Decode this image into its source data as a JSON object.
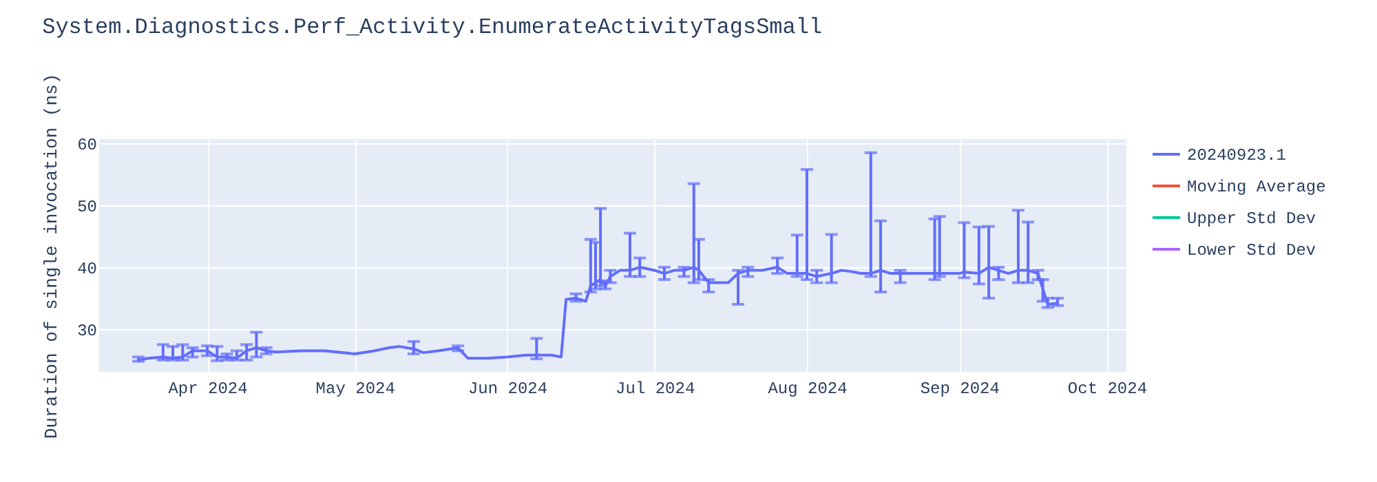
{
  "chart_data": {
    "type": "line",
    "title": "System.Diagnostics.Perf_Activity.EnumerateActivityTagsSmall",
    "ylabel": "Duration of single invocation (ns)",
    "x": [
      "2024-03-18",
      "2024-03-20",
      "2024-03-23",
      "2024-03-25",
      "2024-03-27",
      "2024-03-29",
      "2024-04-01",
      "2024-04-03",
      "2024-04-05",
      "2024-04-07",
      "2024-04-09",
      "2024-04-11",
      "2024-04-13",
      "2024-04-15",
      "2024-04-20",
      "2024-04-25",
      "2024-05-01",
      "2024-05-05",
      "2024-05-08",
      "2024-05-10",
      "2024-05-13",
      "2024-05-15",
      "2024-05-18",
      "2024-05-22",
      "2024-05-24",
      "2024-05-28",
      "2024-06-01",
      "2024-06-05",
      "2024-06-07",
      "2024-06-10",
      "2024-06-12",
      "2024-06-13",
      "2024-06-15",
      "2024-06-17",
      "2024-06-18",
      "2024-06-19",
      "2024-06-20",
      "2024-06-21",
      "2024-06-22",
      "2024-06-24",
      "2024-06-26",
      "2024-06-28",
      "2024-07-01",
      "2024-07-03",
      "2024-07-05",
      "2024-07-07",
      "2024-07-09",
      "2024-07-10",
      "2024-07-12",
      "2024-07-14",
      "2024-07-16",
      "2024-07-18",
      "2024-07-20",
      "2024-07-23",
      "2024-07-26",
      "2024-07-28",
      "2024-07-30",
      "2024-08-01",
      "2024-08-03",
      "2024-08-06",
      "2024-08-08",
      "2024-08-10",
      "2024-08-12",
      "2024-08-14",
      "2024-08-16",
      "2024-08-18",
      "2024-08-20",
      "2024-08-24",
      "2024-08-27",
      "2024-08-28",
      "2024-09-01",
      "2024-09-02",
      "2024-09-05",
      "2024-09-07",
      "2024-09-09",
      "2024-09-11",
      "2024-09-13",
      "2024-09-15",
      "2024-09-17",
      "2024-09-18",
      "2024-09-19",
      "2024-09-21"
    ],
    "series": [
      {
        "name": "20240923.1",
        "color": "#636efa",
        "values": [
          25,
          25.3,
          25.5,
          25.3,
          25.5,
          26.5,
          26.5,
          25.5,
          25.5,
          25.3,
          26.5,
          27,
          26.5,
          26.3,
          26.5,
          26.5,
          26,
          26.5,
          27,
          27.2,
          26.8,
          26.2,
          26.5,
          27,
          25.3,
          25.3,
          25.5,
          25.8,
          25.8,
          25.8,
          25.5,
          34.8,
          35,
          34.5,
          37,
          37.5,
          38,
          37,
          38.5,
          39.5,
          39.5,
          40,
          39.5,
          39,
          39.5,
          39.5,
          40,
          39.5,
          37.5,
          37.5,
          37.5,
          39,
          39.5,
          39.5,
          40,
          39,
          39,
          39,
          38.5,
          39,
          39.5,
          39.3,
          39,
          39,
          39.5,
          39,
          39,
          39,
          39,
          39,
          39,
          39.2,
          39,
          40,
          39.5,
          39,
          39.5,
          39.5,
          39,
          36.5,
          34,
          34.2
        ],
        "errors": [
          [
            24.8,
            25.5
          ],
          null,
          [
            25,
            27.5
          ],
          [
            25,
            27.2
          ],
          [
            25,
            27.5
          ],
          [
            25.5,
            27
          ],
          [
            25.7,
            27.3
          ],
          [
            24.9,
            27.2
          ],
          [
            25,
            26
          ],
          [
            25,
            26.5
          ],
          [
            25,
            27.5
          ],
          [
            25.5,
            29.5
          ],
          [
            26,
            27
          ],
          null,
          null,
          null,
          null,
          null,
          null,
          null,
          [
            26,
            28
          ],
          null,
          null,
          [
            26.5,
            27.3
          ],
          null,
          null,
          null,
          null,
          [
            25.2,
            28.5
          ],
          null,
          null,
          null,
          [
            34.5,
            35.7
          ],
          null,
          [
            36,
            44.5
          ],
          [
            36.5,
            44
          ],
          [
            37,
            49.5
          ],
          [
            36.5,
            37.8
          ],
          [
            37.5,
            39.5
          ],
          null,
          [
            38.5,
            45.5
          ],
          [
            38.5,
            41.5
          ],
          null,
          [
            38,
            40
          ],
          null,
          [
            38.5,
            40
          ],
          [
            37.5,
            53.5
          ],
          [
            38,
            44.5
          ],
          [
            36,
            38
          ],
          null,
          null,
          [
            34,
            39.5
          ],
          [
            38.5,
            40
          ],
          null,
          [
            39,
            41.5
          ],
          null,
          [
            38.5,
            45.2
          ],
          [
            38,
            55.8
          ],
          [
            37.5,
            39.5
          ],
          [
            37.5,
            45.3
          ],
          null,
          null,
          null,
          [
            38.5,
            58.5
          ],
          [
            36,
            47.5
          ],
          null,
          [
            37.5,
            39.5
          ],
          null,
          [
            38,
            47.8
          ],
          [
            38.5,
            48.2
          ],
          null,
          [
            38.3,
            47.2
          ],
          [
            37.3,
            46.5
          ],
          [
            35,
            46.6
          ],
          [
            38,
            40
          ],
          null,
          [
            37.5,
            49.2
          ],
          [
            37.5,
            47.3
          ],
          [
            38,
            39.5
          ],
          [
            34.5,
            38
          ],
          [
            33.5,
            35
          ],
          [
            33.8,
            35
          ]
        ]
      },
      {
        "name": "Moving Average",
        "color": "#ef553b",
        "values": [
          null,
          null,
          null,
          null,
          null,
          null,
          null,
          null,
          null,
          null,
          null,
          null,
          null,
          null,
          null,
          null,
          null,
          null,
          null,
          null,
          null,
          null,
          null,
          null,
          null,
          null,
          null,
          null,
          null,
          null,
          null,
          null,
          null,
          null,
          null,
          null,
          null,
          null,
          null,
          null,
          null,
          null,
          null,
          null,
          null,
          null,
          null,
          null,
          null,
          null,
          null,
          null,
          null,
          null,
          null,
          null,
          null,
          null,
          null,
          null,
          null,
          null,
          null,
          null,
          null,
          null,
          null,
          null,
          null,
          null,
          null,
          null,
          null,
          null,
          null,
          null,
          null,
          null,
          null,
          null,
          null,
          null
        ]
      },
      {
        "name": "Upper Std Dev",
        "color": "#00cc96",
        "values": [
          null,
          null,
          null,
          null,
          null,
          null,
          null,
          null,
          null,
          null,
          null,
          null,
          null,
          null,
          null,
          null,
          null,
          null,
          null,
          null,
          null,
          null,
          null,
          null,
          null,
          null,
          null,
          null,
          null,
          null,
          null,
          null,
          null,
          null,
          null,
          null,
          null,
          null,
          null,
          null,
          null,
          null,
          null,
          null,
          null,
          null,
          null,
          null,
          null,
          null,
          null,
          null,
          null,
          null,
          null,
          null,
          null,
          null,
          null,
          null,
          null,
          null,
          null,
          null,
          null,
          null,
          null,
          null,
          null,
          null,
          null,
          null,
          null,
          null,
          null,
          null,
          null,
          null,
          null,
          null,
          null,
          null
        ]
      },
      {
        "name": "Lower Std Dev",
        "color": "#ab63fa",
        "values": [
          null,
          null,
          null,
          null,
          null,
          null,
          null,
          null,
          null,
          null,
          null,
          null,
          null,
          null,
          null,
          null,
          null,
          null,
          null,
          null,
          null,
          null,
          null,
          null,
          null,
          null,
          null,
          null,
          null,
          null,
          null,
          null,
          null,
          null,
          null,
          null,
          null,
          null,
          null,
          null,
          null,
          null,
          null,
          null,
          null,
          null,
          null,
          null,
          null,
          null,
          null,
          null,
          null,
          null,
          null,
          null,
          null,
          null,
          null,
          null,
          null,
          null,
          null,
          null,
          null,
          null,
          null,
          null,
          null,
          null,
          null,
          null,
          null,
          null,
          null,
          null,
          null,
          null,
          null,
          null,
          null,
          null
        ]
      }
    ],
    "xlim": [
      "2024-03-10",
      "2024-10-05"
    ],
    "xticks": [
      {
        "value": "2024-04-01",
        "label": "Apr 2024"
      },
      {
        "value": "2024-05-01",
        "label": "May 2024"
      },
      {
        "value": "2024-06-01",
        "label": "Jun 2024"
      },
      {
        "value": "2024-07-01",
        "label": "Jul 2024"
      },
      {
        "value": "2024-08-01",
        "label": "Aug 2024"
      },
      {
        "value": "2024-09-01",
        "label": "Sep 2024"
      },
      {
        "value": "2024-10-01",
        "label": "Oct 2024"
      }
    ],
    "ylim": [
      23.1,
      60.7
    ],
    "yticks": [
      30,
      40,
      50,
      60
    ],
    "grid": true,
    "legend": "top right",
    "marker": "none",
    "line_style": "solid"
  }
}
